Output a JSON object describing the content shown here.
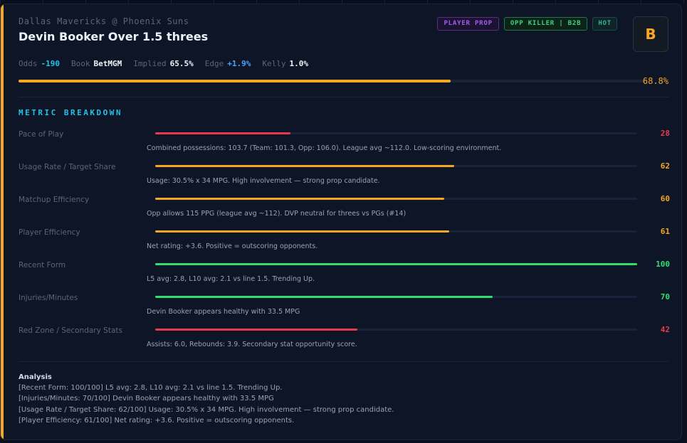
{
  "matchup": "Dallas Mavericks @ Phoenix Suns",
  "title": "Devin Booker Over 1.5 threes",
  "badges": [
    {
      "label": "PLAYER PROP",
      "kind": "prop"
    },
    {
      "label": "OPP KILLER | B2B",
      "kind": "killer"
    },
    {
      "label": "HOT",
      "kind": "hot"
    }
  ],
  "grade": "B",
  "stats": {
    "odds_label": "Odds",
    "odds": "-190",
    "book_label": "Book",
    "book": "BetMGM",
    "implied_label": "Implied",
    "implied": "65.5%",
    "edge_label": "Edge",
    "edge": "+1.9%",
    "kelly_label": "Kelly",
    "kelly": "1.0%"
  },
  "confidence": {
    "value": 68.8,
    "label": "68.8%"
  },
  "section_title": "METRIC BREAKDOWN",
  "metrics": [
    {
      "name": "Pace of Play",
      "score": 28,
      "score_label": "28",
      "color": "#e8394a",
      "desc": "Combined possessions: 103.7 (Team: 101.3, Opp: 106.0). League avg ~112.0. Low-scoring environment."
    },
    {
      "name": "Usage Rate / Target Share",
      "score": 62,
      "score_label": "62",
      "color": "#f5a623",
      "desc": "Usage: 30.5% x 34 MPG. High involvement — strong prop candidate."
    },
    {
      "name": "Matchup Efficiency",
      "score": 60,
      "score_label": "60",
      "color": "#f5a623",
      "desc": "Opp allows 115 PPG (league avg ~112). DVP neutral for threes vs PGs (#14)"
    },
    {
      "name": "Player Efficiency",
      "score": 61,
      "score_label": "61",
      "color": "#f5a623",
      "desc": "Net rating: +3.6. Positive = outscoring opponents."
    },
    {
      "name": "Recent Form",
      "score": 100,
      "score_label": "100",
      "color": "#2ee06f",
      "desc": "L5 avg: 2.8, L10 avg: 2.1 vs line 1.5. Trending Up."
    },
    {
      "name": "Injuries/Minutes",
      "score": 70,
      "score_label": "70",
      "color": "#2ee06f",
      "desc": "Devin Booker appears healthy with 33.5 MPG"
    },
    {
      "name": "Red Zone / Secondary Stats",
      "score": 42,
      "score_label": "42",
      "color": "#e8394a",
      "desc": "Assists: 6.0, Rebounds: 3.9. Secondary stat opportunity score."
    }
  ],
  "analysis": {
    "title": "Analysis",
    "lines": [
      "[Recent Form: 100/100] L5 avg: 2.8, L10 avg: 2.1 vs line 1.5. Trending Up.",
      "[Injuries/Minutes: 70/100] Devin Booker appears healthy with 33.5 MPG",
      "[Usage Rate / Target Share: 62/100] Usage: 30.5% x 34 MPG. High involvement — strong prop candidate.",
      "[Player Efficiency: 61/100] Net rating: +3.6. Positive = outscoring opponents."
    ]
  }
}
